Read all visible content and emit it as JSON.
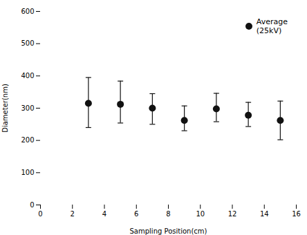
{
  "chart_data": {
    "type": "scatter",
    "x": [
      3,
      5,
      7,
      9,
      11,
      13,
      15
    ],
    "series": [
      {
        "name": "Average\n(25kV)",
        "color": "#111111",
        "marker": "circle",
        "values": [
          315,
          312,
          300,
          262,
          298,
          278,
          262
        ],
        "yerr_upper": [
          80,
          72,
          45,
          45,
          48,
          40,
          60
        ],
        "yerr_lower": [
          75,
          58,
          50,
          32,
          40,
          35,
          60
        ]
      }
    ],
    "xlabel": "Sampling Position(cm)",
    "ylabel": "Diameter(nm)",
    "xlim": [
      0,
      16
    ],
    "ylim": [
      0,
      600
    ],
    "xticks": [
      0,
      2,
      4,
      6,
      8,
      10,
      12,
      14,
      16
    ],
    "yticks": [
      0,
      100,
      200,
      300,
      400,
      500,
      600
    ],
    "legend": "upper right"
  }
}
